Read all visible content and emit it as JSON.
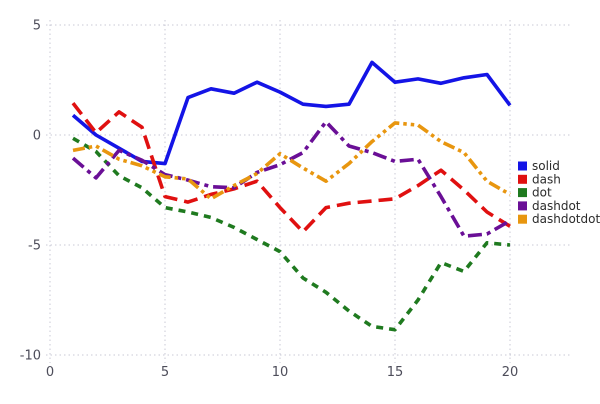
{
  "chart_data": {
    "type": "line",
    "title": "",
    "xlabel": "",
    "ylabel": "",
    "xlim": [
      0,
      20
    ],
    "ylim": [
      -10,
      5
    ],
    "xticks": [
      0,
      5,
      10,
      15,
      20
    ],
    "yticks": [
      5,
      0,
      -5,
      -10
    ],
    "grid": "dotted",
    "legend_position": "right-middle",
    "x": [
      1,
      2,
      3,
      4,
      5,
      6,
      7,
      8,
      9,
      10,
      11,
      12,
      13,
      14,
      15,
      16,
      17,
      18,
      19,
      20
    ],
    "series": [
      {
        "name": "solid",
        "line_style": "solid",
        "color": "#1414e6",
        "values": [
          0.9,
          0.0,
          -0.6,
          -1.2,
          -1.3,
          1.7,
          2.1,
          1.9,
          2.4,
          1.95,
          1.4,
          1.3,
          1.4,
          3.3,
          2.4,
          2.55,
          2.35,
          2.6,
          2.75,
          1.35
        ]
      },
      {
        "name": "dash",
        "line_style": "dash",
        "color": "#e01010",
        "values": [
          1.45,
          0.1,
          1.05,
          0.35,
          -2.8,
          -3.05,
          -2.7,
          -2.45,
          -2.1,
          -3.3,
          -4.4,
          -3.3,
          -3.1,
          -3.0,
          -2.9,
          -2.3,
          -1.6,
          -2.5,
          -3.5,
          -4.15
        ]
      },
      {
        "name": "dot",
        "line_style": "dot",
        "color": "#1f7a1f",
        "values": [
          -0.15,
          -0.75,
          -1.85,
          -2.4,
          -3.3,
          -3.5,
          -3.75,
          -4.2,
          -4.75,
          -5.3,
          -6.5,
          -7.15,
          -8.0,
          -8.7,
          -8.85,
          -7.5,
          -5.8,
          -6.2,
          -4.9,
          -5.0
        ]
      },
      {
        "name": "dashdot",
        "line_style": "dashdot",
        "color": "#6a0f96",
        "values": [
          -1.05,
          -1.95,
          -0.7,
          -1.15,
          -1.8,
          -2.05,
          -2.35,
          -2.4,
          -1.7,
          -1.35,
          -0.8,
          0.6,
          -0.5,
          -0.8,
          -1.2,
          -1.1,
          -2.8,
          -4.6,
          -4.5,
          -3.9
        ]
      },
      {
        "name": "dashdotdot",
        "line_style": "dashdotdot",
        "color": "#e8960f",
        "values": [
          -0.7,
          -0.5,
          -1.1,
          -1.4,
          -1.9,
          -2.0,
          -2.9,
          -2.3,
          -1.75,
          -0.85,
          -1.5,
          -2.1,
          -1.3,
          -0.3,
          0.55,
          0.45,
          -0.3,
          -0.8,
          -2.1,
          -2.7
        ]
      }
    ]
  },
  "legend": {
    "items": [
      "solid",
      "dash",
      "dot",
      "dashdot",
      "dashdotdot"
    ]
  },
  "colors": {
    "background": "#ffffff",
    "grid": "#c9c9d6",
    "tick_label": "#4d4d5a",
    "legend_text": "#2b2b2b"
  }
}
